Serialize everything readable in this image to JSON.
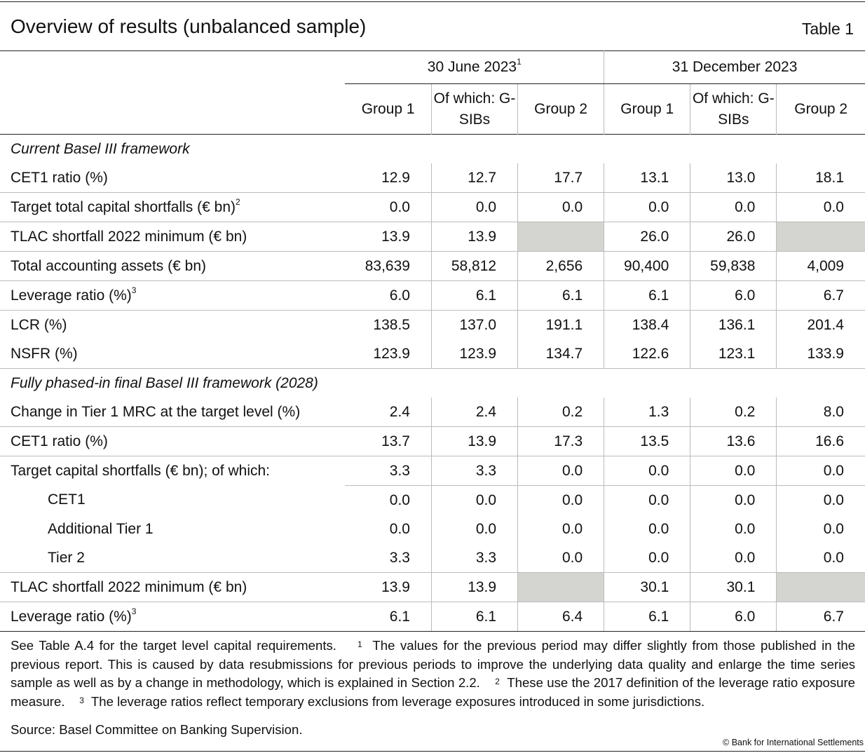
{
  "title": "Overview of results (unbalanced sample)",
  "table_number": "Table 1",
  "header": {
    "periods": [
      {
        "label": "30 June 2023",
        "sup": "1"
      },
      {
        "label": "31 December 2023",
        "sup": ""
      }
    ],
    "columns": [
      "Group 1",
      "Of which: G-SIBs",
      "Group 2",
      "Group 1",
      "Of which: G-SIBs",
      "Group 2"
    ]
  },
  "rows": [
    {
      "type": "section",
      "label": "Current Basel III framework"
    },
    {
      "type": "data",
      "label": "CET1 ratio (%)",
      "values": [
        "12.9",
        "12.7",
        "17.7",
        "13.1",
        "13.0",
        "18.1"
      ]
    },
    {
      "type": "data",
      "label": "Target total capital shortfalls (€ bn)",
      "sup": "2",
      "values": [
        "0.0",
        "0.0",
        "0.0",
        "0.0",
        "0.0",
        "0.0"
      ]
    },
    {
      "type": "data",
      "label": "TLAC shortfall 2022 minimum (€ bn)",
      "values": [
        "13.9",
        "13.9",
        null,
        "26.0",
        "26.0",
        null
      ]
    },
    {
      "type": "data",
      "label": "Total accounting assets (€ bn)",
      "values": [
        "83,639",
        "58,812",
        "2,656",
        "90,400",
        "59,838",
        "4,009"
      ]
    },
    {
      "type": "data",
      "label": "Leverage ratio (%)",
      "sup": "3",
      "values": [
        "6.0",
        "6.1",
        "6.1",
        "6.1",
        "6.0",
        "6.7"
      ]
    },
    {
      "type": "data",
      "label": "LCR (%)",
      "values": [
        "138.5",
        "137.0",
        "191.1",
        "138.4",
        "136.1",
        "201.4"
      ]
    },
    {
      "type": "data",
      "label": "NSFR (%)",
      "values": [
        "123.9",
        "123.9",
        "134.7",
        "122.6",
        "123.1",
        "133.9"
      ]
    },
    {
      "type": "section",
      "label": "Fully phased-in final Basel III framework (2028)"
    },
    {
      "type": "data",
      "label": "Change in Tier 1 MRC at the target level (%)",
      "values": [
        "2.4",
        "2.4",
        "0.2",
        "1.3",
        "0.2",
        "8.0"
      ]
    },
    {
      "type": "data",
      "label": "CET1 ratio (%)",
      "values": [
        "13.7",
        "13.9",
        "17.3",
        "13.5",
        "13.6",
        "16.6"
      ]
    },
    {
      "type": "data",
      "label": "Target capital shortfalls (€ bn); of which:",
      "values": [
        "3.3",
        "3.3",
        "0.0",
        "0.0",
        "0.0",
        "0.0"
      ]
    },
    {
      "type": "data",
      "indent": true,
      "label": "CET1",
      "values": [
        "0.0",
        "0.0",
        "0.0",
        "0.0",
        "0.0",
        "0.0"
      ]
    },
    {
      "type": "data",
      "indent": true,
      "label": "Additional Tier 1",
      "values": [
        "0.0",
        "0.0",
        "0.0",
        "0.0",
        "0.0",
        "0.0"
      ]
    },
    {
      "type": "data",
      "indent": true,
      "label": "Tier 2",
      "values": [
        "3.3",
        "3.3",
        "0.0",
        "0.0",
        "0.0",
        "0.0"
      ]
    },
    {
      "type": "data",
      "label": "TLAC shortfall 2022 minimum (€ bn)",
      "values": [
        "13.9",
        "13.9",
        null,
        "30.1",
        "30.1",
        null
      ]
    },
    {
      "type": "data",
      "label": "Leverage ratio (%)",
      "sup": "3",
      "values": [
        "6.1",
        "6.1",
        "6.4",
        "6.1",
        "6.0",
        "6.7"
      ]
    }
  ],
  "notes": {
    "intro": "See Table A.4 for the target level capital requirements.",
    "n1_mark": "1",
    "n1": "The values for the previous period may differ slightly from those published in the previous report. This is caused by data resubmissions for previous periods to improve the underlying data quality and enlarge the time series sample as well as by a change in methodology, which is explained in Section 2.2.",
    "n2_mark": "2",
    "n2": "These use the 2017 definition of the leverage ratio exposure measure.",
    "n3_mark": "3",
    "n3": "The leverage ratios reflect temporary exclusions from leverage exposures introduced in some jurisdictions."
  },
  "source": "Source: Basel Committee on Banking Supervision.",
  "copyright": "© Bank for International Settlements",
  "colors": {
    "empty_cell": "#d4d4d0",
    "grid": "#bbbbbb",
    "rule": "#222222"
  }
}
